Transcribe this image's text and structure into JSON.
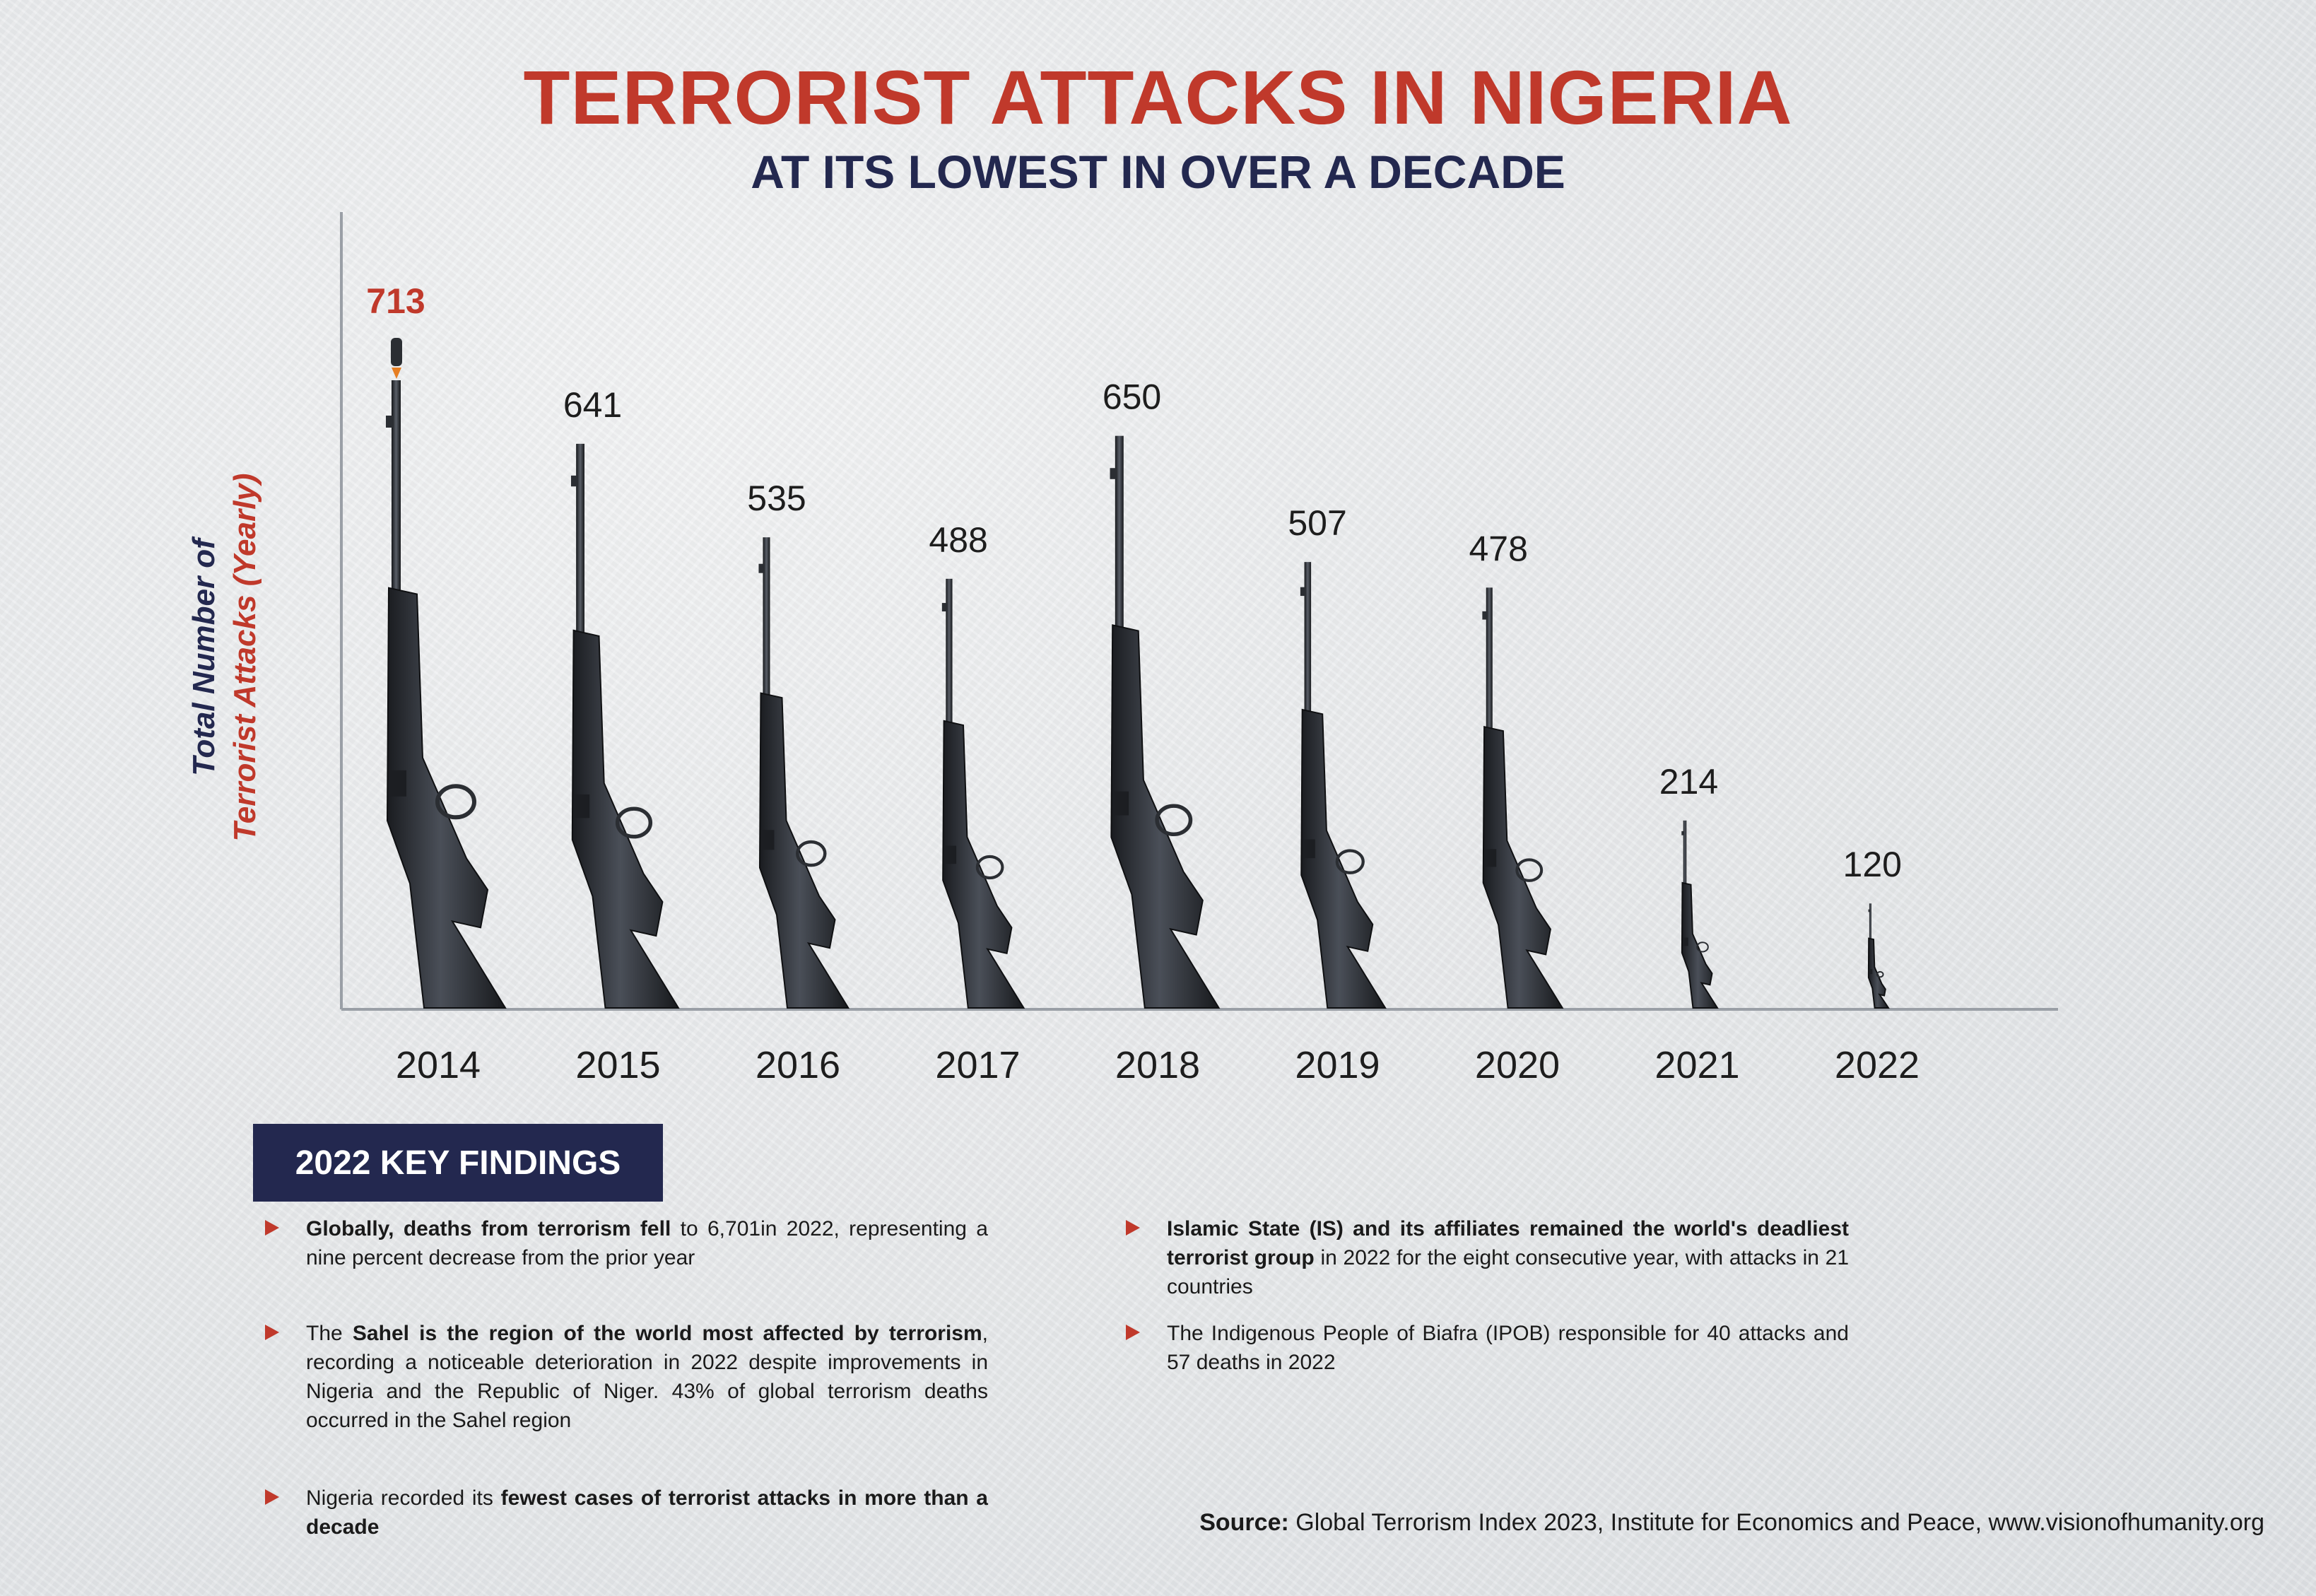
{
  "title": "TERRORIST ATTACKS IN NIGERIA",
  "subtitle": "AT ITS LOWEST IN OVER A DECADE",
  "ylabel_line1": "Total Number of",
  "ylabel_line2": "Terrorist Attacks (Yearly)",
  "chart_data": {
    "type": "bar",
    "title": "TERRORIST ATTACKS IN NIGERIA",
    "subtitle": "AT ITS LOWEST IN OVER A DECADE",
    "ylabel": "Total Number of Terrorist Attacks (Yearly)",
    "categories": [
      "2014",
      "2015",
      "2016",
      "2017",
      "2018",
      "2019",
      "2020",
      "2021",
      "2022"
    ],
    "values": [
      713,
      641,
      535,
      488,
      650,
      507,
      478,
      214,
      120
    ],
    "highlight_index": 0,
    "mark": "rifle",
    "colors": {
      "highlight": "#c0392b",
      "bar": "#2d3138",
      "axis": "#9a9fa6"
    }
  },
  "findings": {
    "header": "2022 KEY FINDINGS",
    "items": [
      {
        "b1": "Globally, deaths from terrorism fell",
        "t1": " to 6,701in 2022, representing a nine percent decrease from the prior year"
      },
      {
        "t0": "The ",
        "b1": "Sahel is the region of the world most affected by terrorism",
        "t1": ", recording a noticeable deterioration in 2022 despite improvements in Nigeria and the Republic of Niger. 43% of global terrorism deaths occurred in the Sahel region"
      },
      {
        "t0": "Nigeria recorded its ",
        "b1": "fewest cases of terrorist attacks in more than a decade"
      },
      {
        "b1": "Islamic State (IS) and its affiliates remained the world's deadliest terrorist group",
        "t1": " in 2022 for the eight consecutive year, with attacks in 21 countries"
      },
      {
        "t0": "The Indigenous People of Biafra (IPOB) responsible for 40 attacks and 57 deaths in 2022"
      }
    ]
  },
  "source": {
    "label": "Source:",
    "text": " Global Terrorism Index 2023, Institute for Economics and Peace, www.visionofhumanity.org"
  }
}
